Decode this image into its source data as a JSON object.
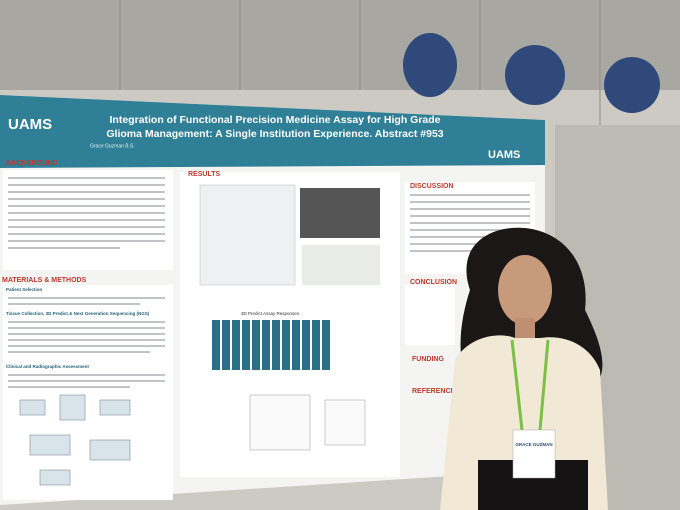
{
  "poster": {
    "logo_left": "UAMS",
    "logo_right": "UAMS",
    "title_line1": "Integration of Functional Precision Medicine Assay for High Grade",
    "title_line2": "Glioma Management: A Single Institution Experience. Abstract #953",
    "authors": "Grace Guzman B.S.",
    "sections": {
      "background": "BACKGROUND",
      "results": "RESULTS",
      "discussion": "DISCUSSION",
      "methods": "MATERIALS & METHODS",
      "conclusion": "CONCLUSION",
      "funding": "FUNDING",
      "references": "REFERENCES"
    },
    "subsections": [
      "Patient Selection",
      "Tissue Collection, 3D Predict & Next Generation Sequencing (NGS)",
      "Clinical and Radiographic Assessment"
    ],
    "chart_title": "3D Predict Assay Responses"
  },
  "badge": {
    "name": "GRACE GUZMAN"
  }
}
